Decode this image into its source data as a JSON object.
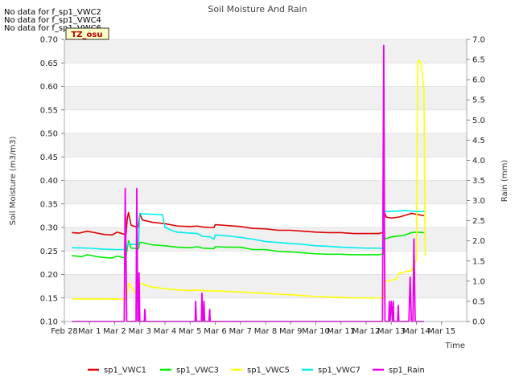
{
  "chart_data": {
    "type": "line",
    "title": "Soil Moisture And Rain",
    "xlabel": "Time",
    "ylabel": "Soil Moisture (m3/m3)",
    "y2label": "Rain (mm)",
    "xlim": [
      0,
      16
    ],
    "ylim": [
      0.1,
      0.7
    ],
    "y2lim": [
      0.0,
      7.0
    ],
    "x_ticks": [
      {
        "x": 0,
        "label": "Feb 28"
      },
      {
        "x": 1,
        "label": "Mar 1"
      },
      {
        "x": 2,
        "label": "Mar 2"
      },
      {
        "x": 3,
        "label": "Mar 3"
      },
      {
        "x": 4,
        "label": "Mar 4"
      },
      {
        "x": 5,
        "label": "Mar 5"
      },
      {
        "x": 6,
        "label": "Mar 6"
      },
      {
        "x": 7,
        "label": "Mar 7"
      },
      {
        "x": 8,
        "label": "Mar 8"
      },
      {
        "x": 9,
        "label": "Mar 9"
      },
      {
        "x": 10,
        "label": "Mar 10"
      },
      {
        "x": 11,
        "label": "Mar 11"
      },
      {
        "x": 12,
        "label": "Mar 12"
      },
      {
        "x": 13,
        "label": "Mar 13"
      },
      {
        "x": 14,
        "label": "Mar 14"
      },
      {
        "x": 15,
        "label": "Mar 15"
      }
    ],
    "y_ticks": [
      "0.10",
      "0.15",
      "0.20",
      "0.25",
      "0.30",
      "0.35",
      "0.40",
      "0.45",
      "0.50",
      "0.55",
      "0.60",
      "0.65",
      "0.70"
    ],
    "y2_ticks": [
      "0.0",
      "0.5",
      "1.0",
      "1.5",
      "2.0",
      "2.5",
      "3.0",
      "3.5",
      "4.0",
      "4.5",
      "5.0",
      "5.5",
      "6.0",
      "6.5",
      "7.0"
    ],
    "grid": true,
    "bands": "alternating-gray",
    "legend_position": "bottom",
    "notes": [
      "No data for f_sp1_VWC2",
      "No data for f_sp1_VWC4",
      "No data for f_sp1_VWC6"
    ],
    "badge": "TZ_osu",
    "series": [
      {
        "name": "sp1_VWC1",
        "color": "#dd0000",
        "axis": "left",
        "points": [
          [
            0.3,
            0.289
          ],
          [
            0.6,
            0.288
          ],
          [
            0.9,
            0.292
          ],
          [
            1.3,
            0.288
          ],
          [
            1.6,
            0.285
          ],
          [
            1.9,
            0.284
          ],
          [
            2.1,
            0.29
          ],
          [
            2.35,
            0.286
          ],
          [
            2.45,
            0.284
          ],
          [
            2.5,
            0.318
          ],
          [
            2.55,
            0.332
          ],
          [
            2.65,
            0.305
          ],
          [
            2.8,
            0.302
          ],
          [
            2.95,
            0.302
          ],
          [
            3.0,
            0.33
          ],
          [
            3.1,
            0.316
          ],
          [
            3.5,
            0.311
          ],
          [
            4.0,
            0.308
          ],
          [
            4.5,
            0.303
          ],
          [
            5.0,
            0.302
          ],
          [
            5.3,
            0.303
          ],
          [
            5.5,
            0.301
          ],
          [
            5.8,
            0.3
          ],
          [
            5.95,
            0.3
          ],
          [
            6.0,
            0.306
          ],
          [
            6.5,
            0.304
          ],
          [
            7.0,
            0.302
          ],
          [
            7.5,
            0.298
          ],
          [
            8.0,
            0.297
          ],
          [
            8.5,
            0.294
          ],
          [
            9.0,
            0.294
          ],
          [
            9.5,
            0.292
          ],
          [
            10.0,
            0.29
          ],
          [
            10.5,
            0.289
          ],
          [
            11.0,
            0.289
          ],
          [
            11.5,
            0.287
          ],
          [
            12.0,
            0.287
          ],
          [
            12.5,
            0.287
          ],
          [
            12.7,
            0.29
          ],
          [
            12.72,
            0.333
          ],
          [
            12.8,
            0.322
          ],
          [
            13.0,
            0.32
          ],
          [
            13.3,
            0.322
          ],
          [
            13.5,
            0.325
          ],
          [
            13.8,
            0.33
          ],
          [
            14.0,
            0.328
          ],
          [
            14.3,
            0.325
          ]
        ]
      },
      {
        "name": "sp1_VWC3",
        "color": "#00ee00",
        "axis": "left",
        "points": [
          [
            0.3,
            0.24
          ],
          [
            0.7,
            0.238
          ],
          [
            0.9,
            0.242
          ],
          [
            1.3,
            0.238
          ],
          [
            1.6,
            0.236
          ],
          [
            1.9,
            0.235
          ],
          [
            2.1,
            0.239
          ],
          [
            2.35,
            0.236
          ],
          [
            2.45,
            0.236
          ],
          [
            2.5,
            0.255
          ],
          [
            2.55,
            0.272
          ],
          [
            2.65,
            0.256
          ],
          [
            2.95,
            0.255
          ],
          [
            3.0,
            0.268
          ],
          [
            3.1,
            0.268
          ],
          [
            3.5,
            0.263
          ],
          [
            4.0,
            0.261
          ],
          [
            4.5,
            0.258
          ],
          [
            5.0,
            0.257
          ],
          [
            5.3,
            0.259
          ],
          [
            5.5,
            0.256
          ],
          [
            5.95,
            0.255
          ],
          [
            6.0,
            0.259
          ],
          [
            6.5,
            0.258
          ],
          [
            7.0,
            0.258
          ],
          [
            7.5,
            0.253
          ],
          [
            8.0,
            0.253
          ],
          [
            8.5,
            0.249
          ],
          [
            9.0,
            0.248
          ],
          [
            9.5,
            0.246
          ],
          [
            10.0,
            0.244
          ],
          [
            10.5,
            0.243
          ],
          [
            11.0,
            0.243
          ],
          [
            11.5,
            0.242
          ],
          [
            12.0,
            0.242
          ],
          [
            12.5,
            0.242
          ],
          [
            12.7,
            0.244
          ],
          [
            12.72,
            0.278
          ],
          [
            12.8,
            0.276
          ],
          [
            13.0,
            0.28
          ],
          [
            13.3,
            0.282
          ],
          [
            13.5,
            0.283
          ],
          [
            13.8,
            0.289
          ],
          [
            14.0,
            0.29
          ],
          [
            14.3,
            0.289
          ]
        ]
      },
      {
        "name": "sp1_VWC5",
        "color": "#ffff00",
        "axis": "left",
        "points": [
          [
            0.3,
            0.148
          ],
          [
            1.0,
            0.148
          ],
          [
            2.0,
            0.148
          ],
          [
            2.4,
            0.147
          ],
          [
            2.45,
            0.148
          ],
          [
            2.5,
            0.158
          ],
          [
            2.55,
            0.181
          ],
          [
            2.65,
            0.175
          ],
          [
            2.8,
            0.162
          ],
          [
            2.95,
            0.162
          ],
          [
            3.0,
            0.182
          ],
          [
            3.2,
            0.178
          ],
          [
            3.5,
            0.173
          ],
          [
            4.0,
            0.17
          ],
          [
            4.5,
            0.167
          ],
          [
            5.0,
            0.166
          ],
          [
            5.3,
            0.167
          ],
          [
            5.6,
            0.165
          ],
          [
            6.0,
            0.165
          ],
          [
            6.5,
            0.164
          ],
          [
            7.0,
            0.163
          ],
          [
            7.5,
            0.161
          ],
          [
            8.0,
            0.16
          ],
          [
            8.5,
            0.158
          ],
          [
            9.0,
            0.157
          ],
          [
            9.5,
            0.155
          ],
          [
            10.0,
            0.153
          ],
          [
            10.5,
            0.152
          ],
          [
            11.0,
            0.151
          ],
          [
            11.5,
            0.15
          ],
          [
            12.0,
            0.15
          ],
          [
            12.5,
            0.15
          ],
          [
            12.7,
            0.15
          ],
          [
            12.72,
            0.183
          ],
          [
            12.8,
            0.186
          ],
          [
            13.0,
            0.188
          ],
          [
            13.2,
            0.19
          ],
          [
            13.3,
            0.202
          ],
          [
            13.5,
            0.205
          ],
          [
            13.8,
            0.208
          ],
          [
            13.9,
            0.222
          ],
          [
            14.0,
            0.23
          ],
          [
            14.05,
            0.65
          ],
          [
            14.1,
            0.656
          ],
          [
            14.2,
            0.645
          ],
          [
            14.3,
            0.59
          ],
          [
            14.35,
            0.24
          ]
        ]
      },
      {
        "name": "sp1_VWC7",
        "color": "#00eeee",
        "axis": "left",
        "points": [
          [
            0.3,
            0.257
          ],
          [
            1.0,
            0.256
          ],
          [
            1.5,
            0.254
          ],
          [
            2.0,
            0.253
          ],
          [
            2.4,
            0.253
          ],
          [
            2.45,
            0.253
          ],
          [
            2.5,
            0.262
          ],
          [
            2.55,
            0.266
          ],
          [
            2.65,
            0.264
          ],
          [
            2.95,
            0.264
          ],
          [
            3.0,
            0.33
          ],
          [
            3.1,
            0.329
          ],
          [
            3.5,
            0.328
          ],
          [
            3.9,
            0.327
          ],
          [
            3.95,
            0.313
          ],
          [
            4.0,
            0.3
          ],
          [
            4.3,
            0.293
          ],
          [
            4.5,
            0.29
          ],
          [
            5.0,
            0.288
          ],
          [
            5.3,
            0.287
          ],
          [
            5.5,
            0.281
          ],
          [
            5.8,
            0.28
          ],
          [
            5.95,
            0.275
          ],
          [
            6.0,
            0.284
          ],
          [
            6.5,
            0.282
          ],
          [
            7.0,
            0.279
          ],
          [
            7.5,
            0.275
          ],
          [
            8.0,
            0.27
          ],
          [
            8.5,
            0.268
          ],
          [
            9.0,
            0.266
          ],
          [
            9.5,
            0.264
          ],
          [
            10.0,
            0.261
          ],
          [
            10.5,
            0.26
          ],
          [
            11.0,
            0.258
          ],
          [
            11.5,
            0.257
          ],
          [
            12.0,
            0.256
          ],
          [
            12.5,
            0.256
          ],
          [
            12.7,
            0.255
          ],
          [
            12.72,
            0.333
          ],
          [
            12.8,
            0.334
          ],
          [
            13.0,
            0.334
          ],
          [
            13.5,
            0.336
          ],
          [
            14.0,
            0.334
          ],
          [
            14.3,
            0.334
          ]
        ]
      },
      {
        "name": "sp1_Rain",
        "color": "#ee00ee",
        "axis": "right",
        "points": [
          [
            0.3,
            0
          ],
          [
            2.38,
            0
          ],
          [
            2.42,
            3.3
          ],
          [
            2.48,
            0
          ],
          [
            2.85,
            0
          ],
          [
            2.88,
            3.3
          ],
          [
            2.92,
            0
          ],
          [
            2.95,
            0
          ],
          [
            2.97,
            1.2
          ],
          [
            3.0,
            0
          ],
          [
            3.18,
            0
          ],
          [
            3.2,
            0.3
          ],
          [
            3.23,
            0
          ],
          [
            5.2,
            0
          ],
          [
            5.22,
            0.5
          ],
          [
            5.25,
            0
          ],
          [
            5.45,
            0
          ],
          [
            5.47,
            0.7
          ],
          [
            5.5,
            0
          ],
          [
            5.53,
            0
          ],
          [
            5.55,
            0.5
          ],
          [
            5.58,
            0
          ],
          [
            5.75,
            0
          ],
          [
            5.78,
            0.3
          ],
          [
            5.8,
            0
          ],
          [
            12.65,
            0
          ],
          [
            12.7,
            6.85
          ],
          [
            12.73,
            1.8
          ],
          [
            12.75,
            0
          ],
          [
            12.9,
            0
          ],
          [
            12.92,
            0.5
          ],
          [
            12.95,
            0
          ],
          [
            13.0,
            0.5
          ],
          [
            13.05,
            0
          ],
          [
            13.08,
            0.5
          ],
          [
            13.1,
            0
          ],
          [
            13.25,
            0
          ],
          [
            13.28,
            0.4
          ],
          [
            13.3,
            0
          ],
          [
            13.7,
            0
          ],
          [
            13.75,
            1.1
          ],
          [
            13.8,
            0
          ],
          [
            13.86,
            0
          ],
          [
            13.9,
            2.05
          ],
          [
            13.95,
            0
          ],
          [
            14.3,
            0
          ]
        ]
      }
    ]
  }
}
